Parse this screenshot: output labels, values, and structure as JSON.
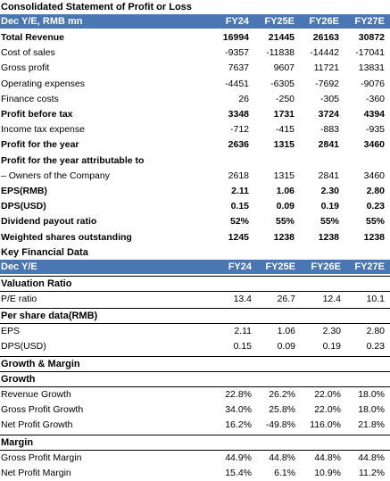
{
  "statement": {
    "title": "Consolidated Statement of Profit or Loss",
    "header": {
      "label": "Dec Y/E, RMB mn",
      "years": [
        "FY24",
        "FY25E",
        "FY26E",
        "FY27E"
      ]
    },
    "rows": [
      {
        "label": "Total Revenue",
        "bold": true,
        "values": [
          "16994",
          "21445",
          "26163",
          "30872"
        ]
      },
      {
        "label": "Cost of sales",
        "bold": false,
        "values": [
          "-9357",
          "-11838",
          "-14442",
          "-17041"
        ]
      },
      {
        "label": "Gross profit",
        "bold": false,
        "values": [
          "7637",
          "9607",
          "11721",
          "13831"
        ]
      },
      {
        "label": "Operating expenses",
        "bold": false,
        "values": [
          "-4451",
          "-6305",
          "-7692",
          "-9076"
        ]
      },
      {
        "label": "Finance costs",
        "bold": false,
        "values": [
          "26",
          "-250",
          "-305",
          "-360"
        ]
      },
      {
        "label": "Profit before tax",
        "bold": true,
        "values": [
          "3348",
          "1731",
          "3724",
          "4394"
        ]
      },
      {
        "label": "Income tax expense",
        "bold": false,
        "values": [
          "-712",
          "-415",
          "-883",
          "-935"
        ]
      },
      {
        "label": "Profit for the year",
        "bold": true,
        "values": [
          "2636",
          "1315",
          "2841",
          "3460"
        ]
      },
      {
        "label": "Profit for the year attributable to",
        "bold": true,
        "values": [
          "",
          "",
          "",
          ""
        ]
      },
      {
        "label": "– Owners of the Company",
        "bold": false,
        "values": [
          "2618",
          "1315",
          "2841",
          "3460"
        ]
      },
      {
        "label": "EPS(RMB)",
        "bold": true,
        "values": [
          "2.11",
          "1.06",
          "2.30",
          "2.80"
        ]
      },
      {
        "label": "DPS(USD)",
        "bold": true,
        "values": [
          "0.15",
          "0.09",
          "0.19",
          "0.23"
        ]
      },
      {
        "label": "Dividend payout ratio",
        "bold": true,
        "values": [
          "52%",
          "55%",
          "55%",
          "55%"
        ]
      },
      {
        "label": "Weighted shares outstanding",
        "bold": true,
        "values": [
          "1245",
          "1238",
          "1238",
          "1238"
        ]
      }
    ]
  },
  "key_data": {
    "title": "Key Financial Data",
    "header": {
      "label": "Dec Y/E",
      "years": [
        "FY24",
        "FY25E",
        "FY26E",
        "FY27E"
      ]
    },
    "valuation": {
      "title": "Valuation Ratio",
      "rows": [
        {
          "label": "P/E ratio",
          "values": [
            "13.4",
            "26.7",
            "12.4",
            "10.1"
          ]
        }
      ]
    },
    "per_share": {
      "title": "Per share data(RMB)",
      "rows": [
        {
          "label": "EPS",
          "values": [
            "2.11",
            "1.06",
            "2.30",
            "2.80"
          ]
        },
        {
          "label": "DPS(USD)",
          "values": [
            "0.15",
            "0.09",
            "0.19",
            "0.23"
          ]
        }
      ]
    },
    "growth_margin": {
      "title": "Growth & Margin",
      "growth_title": "Growth",
      "growth_rows": [
        {
          "label": "Revenue Growth",
          "values": [
            "22.8%",
            "26.2%",
            "22.0%",
            "18.0%"
          ]
        },
        {
          "label": "Gross Profit Growth",
          "values": [
            "34.0%",
            "25.8%",
            "22.0%",
            "18.0%"
          ]
        },
        {
          "label": "Net Profit Growth",
          "values": [
            "16.2%",
            "-49.8%",
            "116.0%",
            "21.8%"
          ]
        }
      ],
      "margin_title": "Margin",
      "margin_rows": [
        {
          "label": "Gross Profit Margin",
          "values": [
            "44.9%",
            "44.8%",
            "44.8%",
            "44.8%"
          ]
        },
        {
          "label": "Net Profit Margin",
          "values": [
            "15.4%",
            "6.1%",
            "10.9%",
            "11.2%"
          ]
        }
      ]
    }
  },
  "colors": {
    "header_bg": "#4a76b3",
    "header_text": "#ffffff",
    "rule": "#000000"
  }
}
